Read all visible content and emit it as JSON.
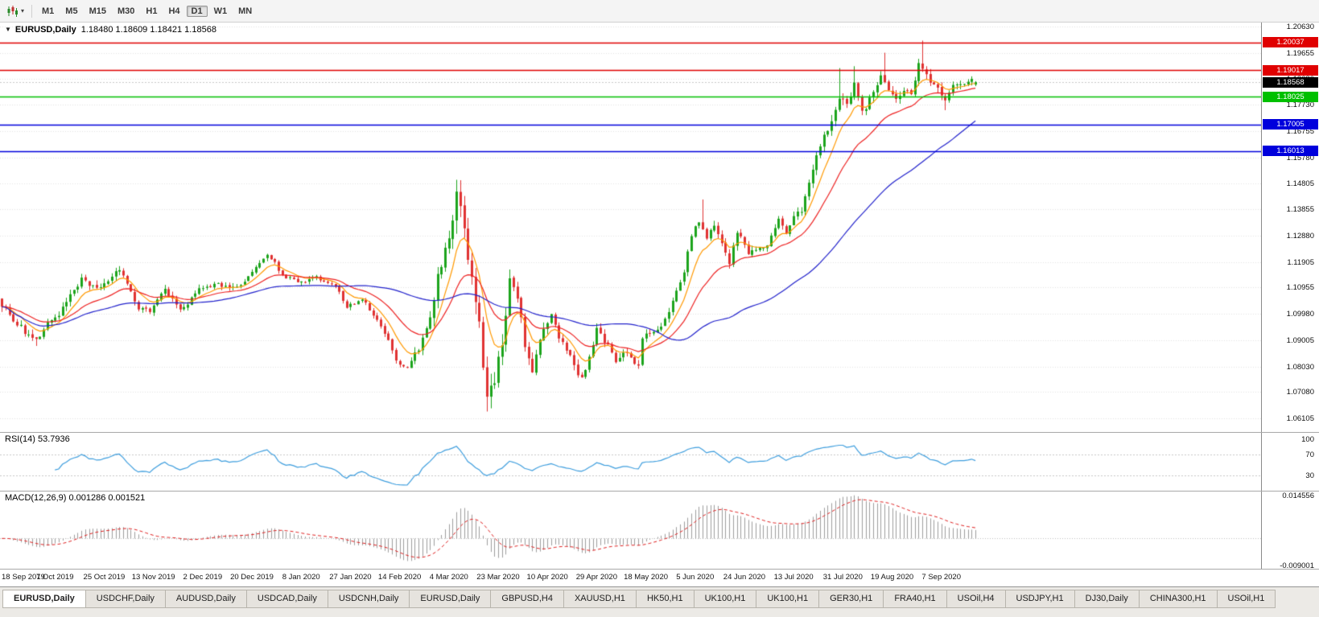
{
  "toolbar": {
    "timeframes": [
      "M1",
      "M5",
      "M15",
      "M30",
      "H1",
      "H4",
      "D1",
      "W1",
      "MN"
    ],
    "active_timeframe": "D1",
    "chart_type_icon": "candlestick-chart-icon",
    "dropdown_icon": "chevron-down-icon"
  },
  "chart_data": {
    "type": "candlestick",
    "symbol": "EURUSD",
    "timeframe": "Daily",
    "symbol_period": "EURUSD,Daily",
    "ohlc_text": "1.18480 1.18609 1.18421 1.18568",
    "ohlc": {
      "open": "1.18480",
      "high": "1.18609",
      "low": "1.18421",
      "close": "1.18568"
    },
    "current_price": 1.18568,
    "price_range": [
      1.056,
      1.2078
    ],
    "bar_count": 258,
    "candle_area_frac": 0.775,
    "seed": 7,
    "price_path": [
      [
        0,
        1.104,
        0.004
      ],
      [
        6,
        1.093,
        0.0038
      ],
      [
        9,
        1.089,
        0.0036
      ],
      [
        13,
        1.097,
        0.0036
      ],
      [
        17,
        1.104,
        0.0036
      ],
      [
        21,
        1.112,
        0.0034
      ],
      [
        26,
        1.108,
        0.0034
      ],
      [
        31,
        1.115,
        0.0034
      ],
      [
        36,
        1.103,
        0.003
      ],
      [
        39,
        1.1005,
        0.003
      ],
      [
        43,
        1.1075,
        0.003
      ],
      [
        47,
        1.101,
        0.003
      ],
      [
        52,
        1.1078,
        0.0028
      ],
      [
        56,
        1.1105,
        0.0028
      ],
      [
        60,
        1.109,
        0.0028
      ],
      [
        64,
        1.113,
        0.0028
      ],
      [
        67,
        1.1175,
        0.0028
      ],
      [
        70,
        1.121,
        0.0028
      ],
      [
        73,
        1.116,
        0.0028
      ],
      [
        78,
        1.111,
        0.0026
      ],
      [
        83,
        1.113,
        0.0026
      ],
      [
        88,
        1.109,
        0.0026
      ],
      [
        91,
        1.102,
        0.0026
      ],
      [
        95,
        1.105,
        0.0026
      ],
      [
        99,
        1.097,
        0.0027
      ],
      [
        104,
        1.0835,
        0.0028
      ],
      [
        107,
        1.079,
        0.0032
      ],
      [
        110,
        1.0855,
        0.0045
      ],
      [
        113,
        1.099,
        0.006
      ],
      [
        115,
        1.113,
        0.007
      ],
      [
        118,
        1.132,
        0.009
      ],
      [
        120,
        1.144,
        0.01
      ],
      [
        122,
        1.127,
        0.01
      ],
      [
        124,
        1.111,
        0.01
      ],
      [
        126,
        1.099,
        0.01
      ],
      [
        128,
        1.07,
        0.01
      ],
      [
        130,
        1.073,
        0.009
      ],
      [
        132,
        1.088,
        0.0085
      ],
      [
        134,
        1.112,
        0.008
      ],
      [
        136,
        1.103,
        0.007
      ],
      [
        138,
        1.087,
        0.0062
      ],
      [
        140,
        1.08,
        0.0056
      ],
      [
        143,
        1.093,
        0.005
      ],
      [
        145,
        1.0975,
        0.0048
      ],
      [
        148,
        1.088,
        0.0045
      ],
      [
        151,
        1.082,
        0.0042
      ],
      [
        153,
        1.076,
        0.004
      ],
      [
        156,
        1.087,
        0.004
      ],
      [
        157,
        1.095,
        0.004
      ],
      [
        159,
        1.0905,
        0.0038
      ],
      [
        162,
        1.083,
        0.0036
      ],
      [
        165,
        1.085,
        0.0034
      ],
      [
        168,
        1.0815,
        0.0034
      ],
      [
        169,
        1.0915,
        0.0034
      ],
      [
        172,
        1.095,
        0.0032
      ],
      [
        175,
        1.098,
        0.0032
      ],
      [
        178,
        1.109,
        0.0034
      ],
      [
        180,
        1.1165,
        0.0035
      ],
      [
        182,
        1.1285,
        0.0037
      ],
      [
        184,
        1.134,
        0.0038
      ],
      [
        186,
        1.1295,
        0.004
      ],
      [
        188,
        1.133,
        0.004
      ],
      [
        190,
        1.1245,
        0.004
      ],
      [
        192,
        1.118,
        0.0038
      ],
      [
        194,
        1.13,
        0.0038
      ],
      [
        197,
        1.122,
        0.0036
      ],
      [
        199,
        1.1235,
        0.0034
      ],
      [
        202,
        1.1245,
        0.0034
      ],
      [
        205,
        1.133,
        0.0034
      ],
      [
        207,
        1.13,
        0.0034
      ],
      [
        208,
        1.134,
        0.0034
      ],
      [
        211,
        1.1385,
        0.0036
      ],
      [
        214,
        1.1525,
        0.004
      ],
      [
        217,
        1.1655,
        0.0044
      ],
      [
        219,
        1.1715,
        0.0048
      ],
      [
        221,
        1.1775,
        0.0052
      ],
      [
        223,
        1.1765,
        0.005
      ],
      [
        225,
        1.187,
        0.0048
      ],
      [
        227,
        1.1745,
        0.0046
      ],
      [
        230,
        1.1815,
        0.0044
      ],
      [
        232,
        1.1865,
        0.0042
      ],
      [
        234,
        1.184,
        0.0042
      ],
      [
        236,
        1.1795,
        0.004
      ],
      [
        238,
        1.1835,
        0.004
      ],
      [
        240,
        1.1822,
        0.004
      ],
      [
        242,
        1.1935,
        0.0042
      ],
      [
        243,
        1.1912,
        0.0044
      ],
      [
        245,
        1.1852,
        0.004
      ],
      [
        247,
        1.1817,
        0.0038
      ],
      [
        249,
        1.18,
        0.0036
      ],
      [
        251,
        1.1845,
        0.0034
      ],
      [
        253,
        1.1848,
        0.0032
      ],
      [
        255,
        1.1862,
        0.003
      ],
      [
        257,
        1.18568,
        0.0028
      ]
    ],
    "wick_overrides": {
      "9": {
        "low": 1.0879
      },
      "31": {
        "high": 1.1175
      },
      "120": {
        "high": 1.1495
      },
      "128": {
        "low": 1.0636
      },
      "185": {
        "high": 1.1422
      },
      "221": {
        "high": 1.1909
      },
      "225": {
        "high": 1.1916
      },
      "233": {
        "high": 1.1966
      },
      "243": {
        "high": 1.2011
      },
      "249": {
        "low": 1.1753
      }
    },
    "last_bar": {
      "open": 1.1848,
      "high": 1.18609,
      "low": 1.18421,
      "close": 1.18568
    },
    "moving_averages": [
      {
        "type": "EMA",
        "period": 8,
        "color": "#FF9900"
      },
      {
        "type": "EMA",
        "period": 21,
        "color": "#EE2222"
      },
      {
        "type": "SMA",
        "period": 55,
        "color": "#2222CC"
      }
    ],
    "horizontal_lines": [
      {
        "price": 1.20037,
        "label": "1.20037",
        "color": "#E00000",
        "role": "resistance"
      },
      {
        "price": 1.19017,
        "label": "1.19017",
        "color": "#E00000",
        "role": "resistance"
      },
      {
        "price": 1.18025,
        "label": "1.18025",
        "color": "#00C000",
        "role": "pivot"
      },
      {
        "price": 1.17005,
        "label": "1.17005",
        "color": "#0000DC",
        "role": "support"
      },
      {
        "price": 1.16013,
        "label": "1.16013",
        "color": "#0000DC",
        "role": "support"
      }
    ],
    "y_ticks": [
      "1.20630",
      "1.19655",
      "1.18680",
      "1.17730",
      "1.16755",
      "1.15780",
      "1.14805",
      "1.13855",
      "1.12880",
      "1.11905",
      "1.10955",
      "1.09980",
      "1.09005",
      "1.08030",
      "1.07080",
      "1.06105"
    ],
    "x_labels": [
      "18 Sep 2019",
      "7 Oct 2019",
      "25 Oct 2019",
      "13 Nov 2019",
      "2 Dec 2019",
      "20 Dec 2019",
      "8 Jan 2020",
      "27 Jan 2020",
      "14 Feb 2020",
      "4 Mar 2020",
      "23 Mar 2020",
      "10 Apr 2020",
      "29 Apr 2020",
      "18 May 2020",
      "5 Jun 2020",
      "24 Jun 2020",
      "13 Jul 2020",
      "31 Jul 2020",
      "19 Aug 2020",
      "7 Sep 2020"
    ],
    "x_label_step_bars": 13,
    "indicators": {
      "rsi": {
        "label": "RSI(14) 53.7936",
        "period": 14,
        "value": "53.7936",
        "levels": [
          70,
          30
        ],
        "ticks": [
          "100",
          "70",
          "30"
        ],
        "scale_max": 112,
        "color": "#3E9EDE"
      },
      "macd": {
        "label": "MACD(12,26,9) 0.001286 0.001521",
        "params": [
          12,
          26,
          9
        ],
        "values": [
          "0.001286",
          "0.001521"
        ],
        "ticks": [
          {
            "value": 0.014556,
            "label": "0.014556"
          },
          {
            "value": -0.009001,
            "label": "-0.009001"
          }
        ],
        "range": [
          -0.0102,
          0.0158
        ],
        "histogram_color": "#9E9E9E",
        "signal_color": "#E02020"
      }
    },
    "colors": {
      "up": "#1CA41C",
      "down": "#E03232",
      "grid": "#E4E4E4",
      "current_price_line": "#C8C8C8",
      "current_price_tag": "#000000"
    }
  },
  "tabs": {
    "items": [
      "EURUSD,Daily",
      "USDCHF,Daily",
      "AUDUSD,Daily",
      "USDCAD,Daily",
      "USDCNH,Daily",
      "EURUSD,Daily",
      "GBPUSD,H4",
      "XAUUSD,H1",
      "HK50,H1",
      "UK100,H1",
      "UK100,H1",
      "GER30,H1",
      "FRA40,H1",
      "USOil,H4",
      "USDJPY,H1",
      "DJ30,Daily",
      "CHINA300,H1",
      "USOil,H1"
    ],
    "active_index": 0
  }
}
